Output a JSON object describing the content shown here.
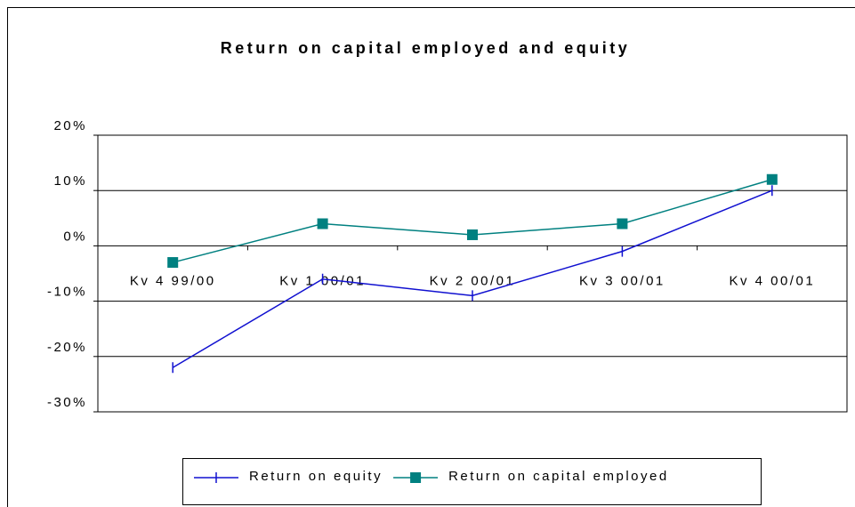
{
  "chart_data": {
    "type": "line",
    "title": "Return on capital employed and equity",
    "categories": [
      "Kv 4 99/00",
      "Kv 1 00/01",
      "Kv 2 00/01",
      "Kv 3 00/01",
      "Kv 4 00/01"
    ],
    "series": [
      {
        "name": "Return on equity",
        "color": "#1010d0",
        "values": [
          -22,
          -6,
          -9,
          -1,
          10
        ]
      },
      {
        "name": "Return on capital employed",
        "color": "#008080",
        "values": [
          -3,
          4,
          2,
          4,
          12
        ]
      }
    ],
    "ylim": [
      -30,
      20
    ],
    "yticks": [
      {
        "value": -30,
        "label": "-30%"
      },
      {
        "value": -20,
        "label": "-20%"
      },
      {
        "value": -10,
        "label": "-10%"
      },
      {
        "value": 0,
        "label": "0%"
      },
      {
        "value": 10,
        "label": "10%"
      },
      {
        "value": 20,
        "label": "20%"
      }
    ],
    "grid": true
  }
}
